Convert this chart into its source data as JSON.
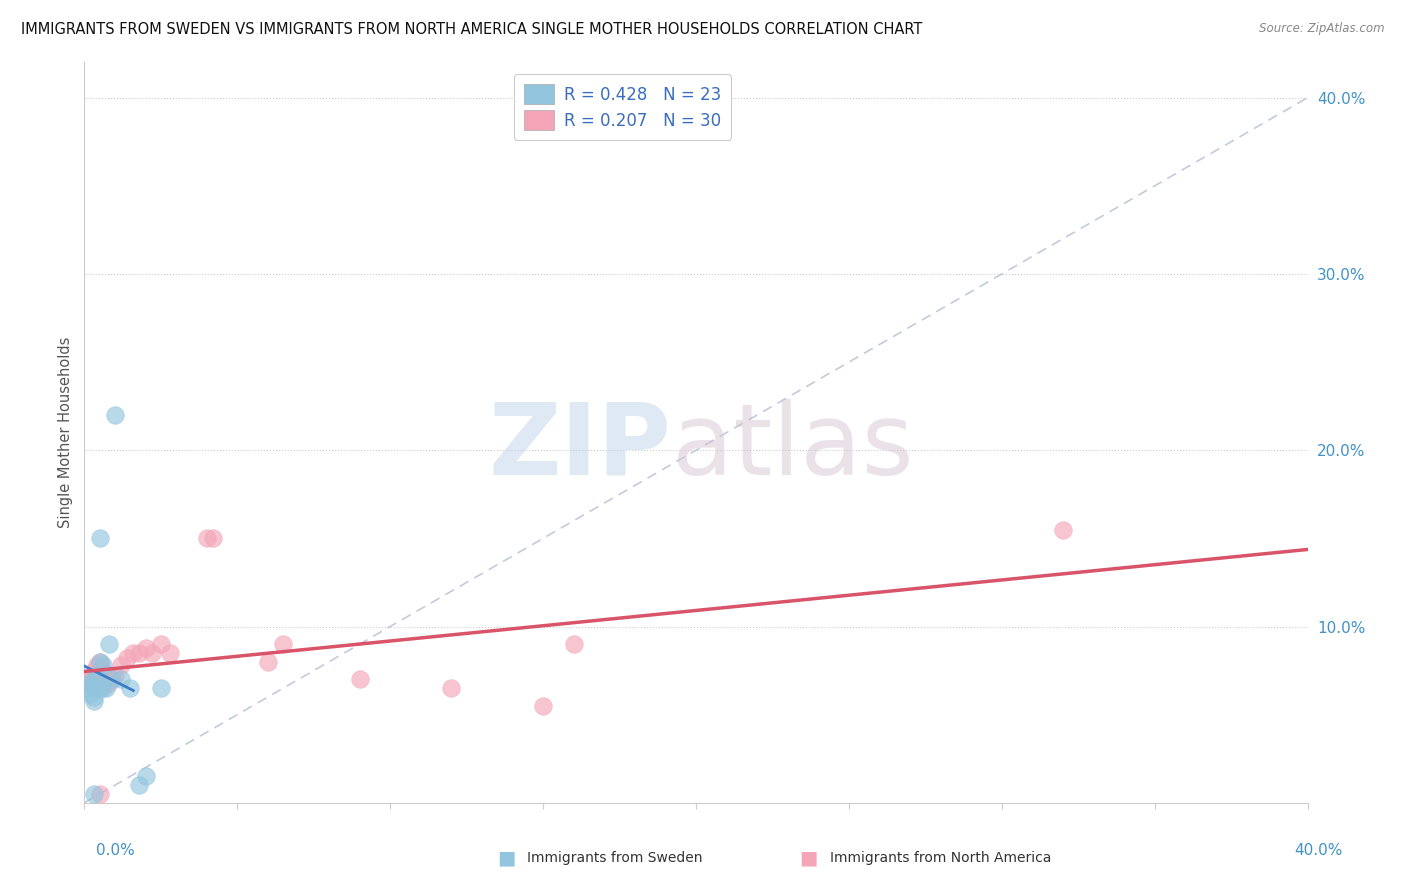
{
  "title": "IMMIGRANTS FROM SWEDEN VS IMMIGRANTS FROM NORTH AMERICA SINGLE MOTHER HOUSEHOLDS CORRELATION CHART",
  "source": "Source: ZipAtlas.com",
  "ylabel": "Single Mother Households",
  "r_sweden": 0.428,
  "n_sweden": 23,
  "r_north_america": 0.207,
  "n_north_america": 30,
  "color_sweden": "#92c5de",
  "color_north_america": "#f4a6b8",
  "color_sweden_line": "#3a7dc9",
  "color_north_america_line": "#d9536a",
  "color_diag": "#aab4cc",
  "grid_color": "#cccccc",
  "background_color": "#ffffff",
  "xlim": [
    0.0,
    0.4
  ],
  "ylim": [
    0.0,
    0.42
  ],
  "ytick_vals": [
    0.1,
    0.2,
    0.3,
    0.4
  ],
  "title_fontsize": 10.5,
  "sweden_x": [
    0.001,
    0.002,
    0.002,
    0.003,
    0.003,
    0.003,
    0.003,
    0.003,
    0.004,
    0.005,
    0.005,
    0.005,
    0.006,
    0.006,
    0.007,
    0.008,
    0.009,
    0.01,
    0.012,
    0.015,
    0.018,
    0.02,
    0.025
  ],
  "sweden_y": [
    0.065,
    0.068,
    0.062,
    0.065,
    0.07,
    0.058,
    0.06,
    0.005,
    0.072,
    0.08,
    0.065,
    0.15,
    0.078,
    0.065,
    0.065,
    0.09,
    0.07,
    0.22,
    0.07,
    0.065,
    0.01,
    0.015,
    0.065
  ],
  "north_america_x": [
    0.001,
    0.002,
    0.003,
    0.003,
    0.004,
    0.005,
    0.005,
    0.006,
    0.007,
    0.008,
    0.009,
    0.01,
    0.012,
    0.014,
    0.016,
    0.018,
    0.02,
    0.022,
    0.025,
    0.028,
    0.04,
    0.042,
    0.06,
    0.065,
    0.09,
    0.12,
    0.15,
    0.16,
    0.32,
    0.005
  ],
  "north_america_y": [
    0.068,
    0.07,
    0.072,
    0.075,
    0.078,
    0.08,
    0.065,
    0.075,
    0.073,
    0.068,
    0.07,
    0.072,
    0.078,
    0.082,
    0.085,
    0.085,
    0.088,
    0.085,
    0.09,
    0.085,
    0.15,
    0.15,
    0.08,
    0.09,
    0.07,
    0.065,
    0.055,
    0.09,
    0.155,
    0.005
  ],
  "sweden_line_x": [
    0.0,
    0.016
  ],
  "north_america_line_x": [
    0.0,
    0.4
  ]
}
